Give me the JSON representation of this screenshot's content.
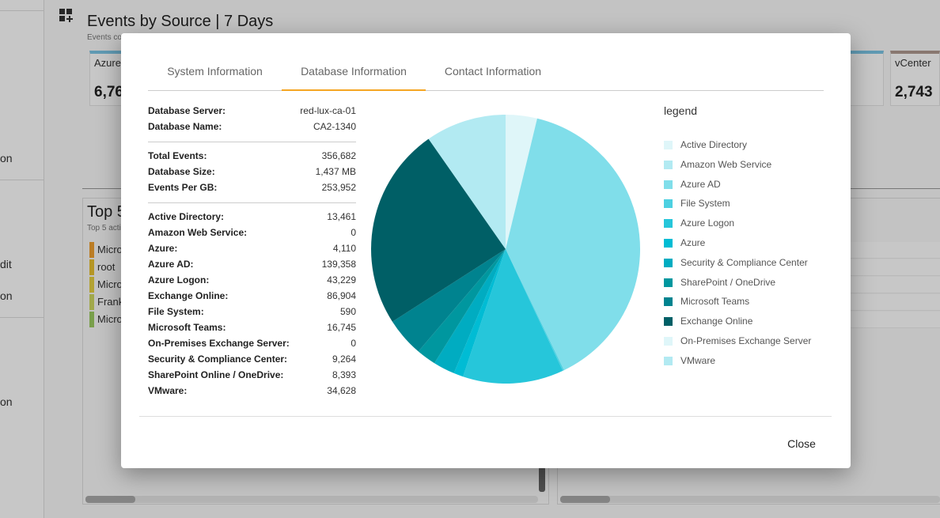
{
  "background": {
    "title": "Events by Source | 7 Days",
    "subtitle": "Events co",
    "cards": [
      {
        "label": "Azure",
        "value": "6,76"
      },
      {
        "label": "vCenter",
        "value": "2,743"
      }
    ],
    "nav_texts": [
      "on",
      "dit",
      "on",
      "on"
    ],
    "title2": "Top 5",
    "subtitle2": "Top 5 acti",
    "rows": [
      {
        "text": "Micro",
        "color": "#f0a030"
      },
      {
        "text": "root",
        "color": "#e8c030"
      },
      {
        "text": "Micro",
        "color": "#e6d040"
      },
      {
        "text": "Frank",
        "color": "#cfd860"
      },
      {
        "text": "Micro",
        "color": "#9bcc60"
      }
    ]
  },
  "modal": {
    "tabs": [
      {
        "label": "System Information",
        "active": false
      },
      {
        "label": "Database Information",
        "active": true
      },
      {
        "label": "Contact Information",
        "active": false
      }
    ],
    "info_groups": [
      [
        {
          "key": "Database Server:",
          "value": "red-lux-ca-01"
        },
        {
          "key": "Database Name:",
          "value": "CA2-1340"
        }
      ],
      [
        {
          "key": "Total Events:",
          "value": "356,682"
        },
        {
          "key": "Database Size:",
          "value": "1,437 MB"
        },
        {
          "key": "Events Per GB:",
          "value": "253,952"
        }
      ],
      [
        {
          "key": "Active Directory:",
          "value": "13,461"
        },
        {
          "key": "Amazon Web Service:",
          "value": "0"
        },
        {
          "key": "Azure:",
          "value": "4,110"
        },
        {
          "key": "Azure AD:",
          "value": "139,358"
        },
        {
          "key": "Azure Logon:",
          "value": "43,229"
        },
        {
          "key": "Exchange Online:",
          "value": "86,904"
        },
        {
          "key": "File System:",
          "value": "590"
        },
        {
          "key": "Microsoft Teams:",
          "value": "16,745"
        },
        {
          "key": "On-Premises Exchange Server:",
          "value": "0"
        },
        {
          "key": "Security & Compliance Center:",
          "value": "9,264"
        },
        {
          "key": "SharePoint Online / OneDrive:",
          "value": "8,393"
        },
        {
          "key": "VMware:",
          "value": "34,628"
        }
      ]
    ],
    "legend_title": "legend",
    "close_label": "Close"
  },
  "chart_data": {
    "type": "pie",
    "slices": [
      {
        "label": "Active Directory",
        "value": 13461,
        "color": "#dff6f9"
      },
      {
        "label": "Amazon Web Service",
        "value": 0,
        "color": "#b2eaf2"
      },
      {
        "label": "Azure AD",
        "value": 139358,
        "color": "#80deea"
      },
      {
        "label": "File System",
        "value": 590,
        "color": "#4dd0e1"
      },
      {
        "label": "Azure Logon",
        "value": 43229,
        "color": "#26c6da"
      },
      {
        "label": "Azure",
        "value": 4110,
        "color": "#00bcd4"
      },
      {
        "label": "Security & Compliance Center",
        "value": 9264,
        "color": "#00acc1"
      },
      {
        "label": "SharePoint / OneDrive",
        "value": 8393,
        "color": "#00979f"
      },
      {
        "label": "Microsoft Teams",
        "value": 16745,
        "color": "#00838f"
      },
      {
        "label": "Exchange Online",
        "value": 86904,
        "color": "#005f66"
      },
      {
        "label": "On-Premises Exchange Server",
        "value": 0,
        "color": "#dff6f9"
      },
      {
        "label": "VMware",
        "value": 34628,
        "color": "#b2eaf2"
      }
    ]
  }
}
